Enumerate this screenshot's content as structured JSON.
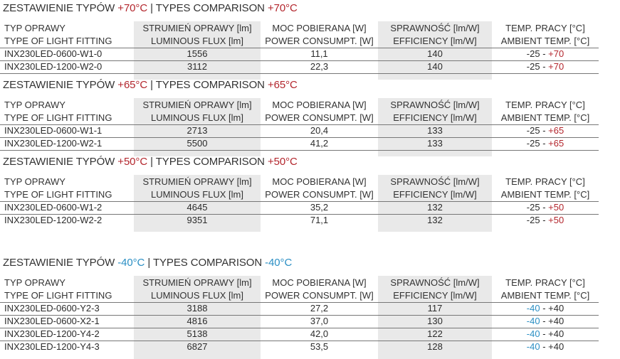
{
  "columns": {
    "c1": [
      "TYP OPRAWY",
      "TYPE OF LIGHT FITTING"
    ],
    "c2": [
      "STRUMIEŃ OPRAWY [lm]",
      "LUMINOUS FLUX [lm]"
    ],
    "c3": [
      "MOC POBIERANA [W]",
      "POWER CONSUMPT. [W]"
    ],
    "c4": [
      "SPRAWNOŚĆ [lm/W]",
      "EFFICIENCY [lm/W]"
    ],
    "c5": [
      "TEMP. PRACY [°C]",
      "AMBIENT TEMP. [°C]"
    ]
  },
  "sections": [
    {
      "title_a": "ZESTAWIENIE TYPÓW ",
      "temp_a": "+70°C",
      "title_b": " | TYPES COMPARISON ",
      "temp_b": "+70°C",
      "rows": [
        {
          "type": "INX230LED-0600-W1-0",
          "flux": "1556",
          "power": "11,1",
          "eff": "140",
          "tmin": "-25 - ",
          "tmax": "+70"
        },
        {
          "type": "INX230LED-1200-W2-0",
          "flux": "3112",
          "power": "22,3",
          "eff": "140",
          "tmin": "-25 - ",
          "tmax": "+70"
        }
      ]
    },
    {
      "title_a": "ZESTAWIENIE TYPÓW ",
      "temp_a": "+65°C",
      "title_b": " | TYPES COMPARISON ",
      "temp_b": "+65°C",
      "rows": [
        {
          "type": "INX230LED-0600-W1-1",
          "flux": "2713",
          "power": "20,4",
          "eff": "133",
          "tmin": "-25 - ",
          "tmax": "+65"
        },
        {
          "type": "INX230LED-1200-W2-1",
          "flux": "5500",
          "power": "41,2",
          "eff": "133",
          "tmin": "-25 - ",
          "tmax": "+65"
        }
      ]
    },
    {
      "title_a": "ZESTAWIENIE TYPÓW ",
      "temp_a": "+50°C",
      "title_b": " | TYPES COMPARISON ",
      "temp_b": "+50°C",
      "rows": [
        {
          "type": "INX230LED-0600-W1-2",
          "flux": "4645",
          "power": "35,2",
          "eff": "132",
          "tmin": "-25 - ",
          "tmax": "+50"
        },
        {
          "type": "INX230LED-1200-W2-2",
          "flux": "9351",
          "power": "71,1",
          "eff": "132",
          "tmin": "-25 - ",
          "tmax": "+50"
        }
      ]
    },
    {
      "title_a": "ZESTAWIENIE TYPÓW ",
      "temp_a": "-40°C",
      "title_b": " | TYPES COMPARISON ",
      "temp_b": "-40°C",
      "rows": [
        {
          "type": "INX230LED-0600-Y2-3",
          "flux": "3188",
          "power": "27,2",
          "eff": "117",
          "tmin": "-40",
          "tmax": " - +40"
        },
        {
          "type": "INX230LED-0600-X2-1",
          "flux": "4816",
          "power": "37,0",
          "eff": "130",
          "tmin": "-40",
          "tmax": " - +40"
        },
        {
          "type": "INX230LED-1200-Y4-2",
          "flux": "5138",
          "power": "42,0",
          "eff": "122",
          "tmin": "-40",
          "tmax": " - +40"
        },
        {
          "type": "INX230LED-1200-Y4-3",
          "flux": "6827",
          "power": "53,5",
          "eff": "128",
          "tmin": "-40",
          "tmax": " - +40"
        }
      ]
    }
  ]
}
